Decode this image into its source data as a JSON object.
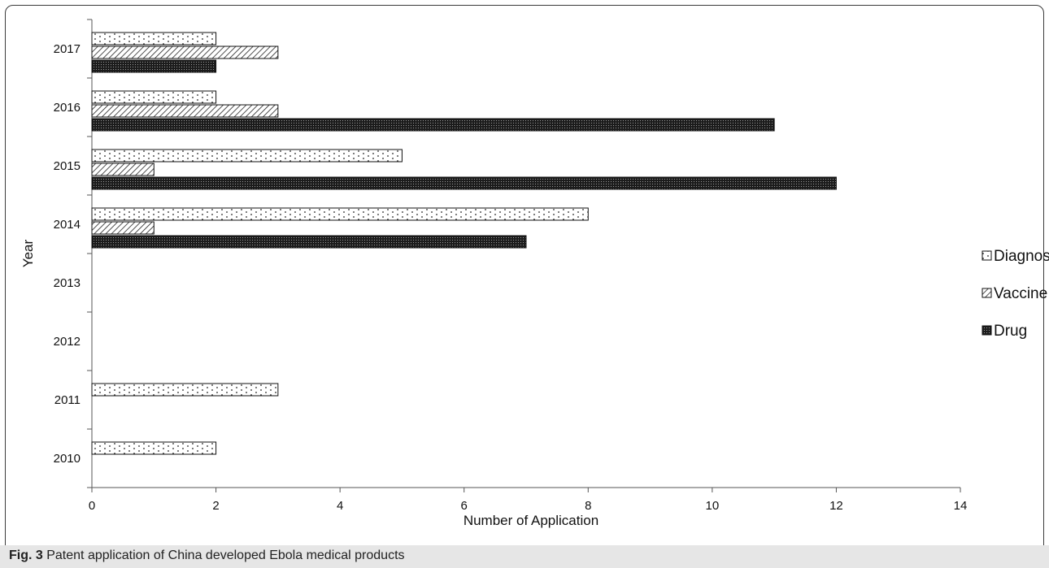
{
  "caption": {
    "label": "Fig. 3",
    "text": "Patent application of China developed Ebola medical products"
  },
  "chart_data": {
    "type": "bar",
    "orientation": "horizontal",
    "title": "",
    "xlabel": "Number  of Application",
    "ylabel": "Year",
    "xlim": [
      0,
      14
    ],
    "xticks": [
      0,
      2,
      4,
      6,
      8,
      10,
      12,
      14
    ],
    "grid": false,
    "legend_position": "right",
    "categories": [
      "2010",
      "2011",
      "2012",
      "2013",
      "2014",
      "2015",
      "2016",
      "2017"
    ],
    "series": [
      {
        "name": "Diagnostics",
        "values": [
          2,
          3,
          0,
          0,
          8,
          5,
          2,
          2
        ],
        "pattern": "dots",
        "color": "#ffffff"
      },
      {
        "name": "Vaccine",
        "values": [
          0,
          0,
          0,
          0,
          1,
          1,
          3,
          3
        ],
        "pattern": "diagonal-hatch",
        "color": "#ffffff"
      },
      {
        "name": "Drug",
        "values": [
          0,
          0,
          0,
          0,
          7,
          12,
          11,
          2
        ],
        "pattern": "dense-dots",
        "color": "#222222"
      }
    ]
  }
}
